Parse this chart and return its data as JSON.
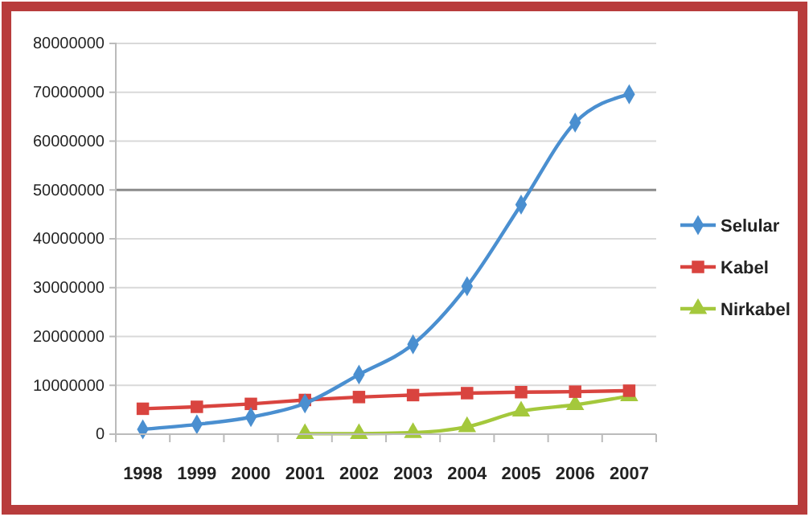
{
  "chart_data": {
    "type": "line",
    "categories": [
      "1998",
      "1999",
      "2000",
      "2001",
      "2002",
      "2003",
      "2004",
      "2005",
      "2006",
      "2007"
    ],
    "series": [
      {
        "name": "Selular",
        "color": "#4a8fd0",
        "marker": "diamond",
        "values": [
          1000000,
          2000000,
          3500000,
          6300000,
          12200000,
          18400000,
          30300000,
          47000000,
          63800000,
          69600000
        ]
      },
      {
        "name": "Kabel",
        "color": "#d9443f",
        "marker": "square",
        "values": [
          5200000,
          5600000,
          6200000,
          7000000,
          7600000,
          8000000,
          8400000,
          8600000,
          8700000,
          8900000
        ]
      },
      {
        "name": "Nirkabel",
        "color": "#a4c83c",
        "marker": "triangle",
        "values": [
          null,
          null,
          null,
          100000,
          100000,
          300000,
          1500000,
          4700000,
          6000000,
          7800000
        ]
      }
    ],
    "ylim": [
      0,
      80000000
    ],
    "yticks": [
      0,
      10000000,
      20000000,
      30000000,
      40000000,
      50000000,
      60000000,
      70000000,
      80000000
    ],
    "grid": "y",
    "legend": "right",
    "ref_lines": [
      {
        "axis": "y",
        "value": 50000000,
        "color": "#8c8c8c"
      }
    ]
  }
}
